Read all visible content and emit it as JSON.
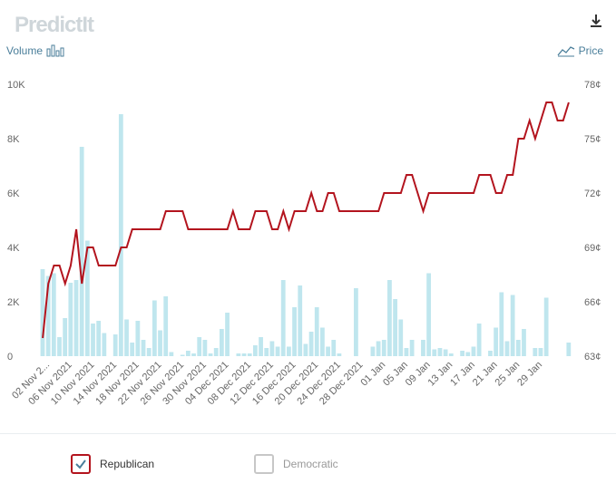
{
  "header": {
    "logo_text": "PredictIt",
    "download_icon": "download-icon"
  },
  "axes": {
    "left_title": "Volume",
    "right_title": "Price",
    "left_icon": "bar-chart-icon",
    "right_icon": "line-chart-icon"
  },
  "legend": [
    {
      "label": "Republican",
      "checked": true,
      "color": "#b3141e"
    },
    {
      "label": "Democratic",
      "checked": false,
      "color": "#c7c7c7"
    }
  ],
  "colors": {
    "price_line": "#b3141e",
    "volume_bar": "#bfe6ee",
    "axis_text": "#666666",
    "label_accent": "#4a7e9a"
  },
  "chart_data": {
    "type": "bar+line",
    "x_tick_labels": [
      "02 Nov 2...",
      "06 Nov 2021",
      "10 Nov 2021",
      "14 Nov 2021",
      "18 Nov 2021",
      "22 Nov 2021",
      "26 Nov 2021",
      "30 Nov 2021",
      "04 Dec 2021",
      "08 Dec 2021",
      "12 Dec 2021",
      "16 Dec 2021",
      "20 Dec 2021",
      "24 Dec 2021",
      "28 Dec 2021",
      "01 Jan",
      "05 Jan",
      "09 Jan",
      "13 Jan",
      "17 Jan",
      "21 Jan",
      "25 Jan",
      "29 Jan"
    ],
    "y_left": {
      "ticks": [
        "0",
        "2K",
        "4K",
        "6K",
        "8K",
        "10K"
      ],
      "lim": [
        0,
        10000
      ]
    },
    "y_right": {
      "ticks": [
        "63¢",
        "66¢",
        "69¢",
        "72¢",
        "75¢",
        "78¢"
      ],
      "lim": [
        63,
        78
      ]
    },
    "series": [
      {
        "name": "Volume",
        "kind": "bar",
        "values": [
          3200,
          2950,
          3050,
          700,
          1400,
          2700,
          2800,
          7700,
          4250,
          1200,
          1300,
          850,
          0,
          800,
          8900,
          1350,
          500,
          1300,
          600,
          300,
          2050,
          950,
          2200,
          150,
          0,
          50,
          200,
          100,
          700,
          600,
          100,
          300,
          1000,
          1600,
          0,
          100,
          100,
          100,
          400,
          700,
          300,
          550,
          350,
          2800,
          350,
          1800,
          2600,
          450,
          900,
          1800,
          1050,
          350,
          600,
          100,
          0,
          0,
          2500,
          0,
          0,
          350,
          550,
          600,
          2800,
          2100,
          1350,
          300,
          600,
          0,
          600,
          3050,
          250,
          300,
          250,
          100,
          0,
          200,
          150,
          350,
          1200,
          0,
          200,
          1050,
          2350,
          550,
          2250,
          600,
          1000,
          0,
          300,
          300,
          2150,
          0,
          0,
          0,
          500
        ],
        "color": "#bfe6ee"
      },
      {
        "name": "Republican",
        "kind": "line",
        "values": [
          64,
          67,
          68,
          68,
          67,
          68,
          70,
          67,
          69,
          69,
          68,
          68,
          68,
          68,
          69,
          69,
          70,
          70,
          70,
          70,
          70,
          70,
          71,
          71,
          71,
          71,
          70,
          70,
          70,
          70,
          70,
          70,
          70,
          70,
          71,
          70,
          70,
          70,
          71,
          71,
          71,
          70,
          70,
          71,
          70,
          71,
          71,
          71,
          72,
          71,
          71,
          72,
          72,
          71,
          71,
          71,
          71,
          71,
          71,
          71,
          71,
          72,
          72,
          72,
          72,
          73,
          73,
          72,
          71,
          72,
          72,
          72,
          72,
          72,
          72,
          72,
          72,
          72,
          73,
          73,
          73,
          72,
          72,
          73,
          73,
          75,
          75,
          76,
          75,
          76,
          77,
          77,
          76,
          76,
          77
        ],
        "color": "#b3141e"
      }
    ]
  }
}
